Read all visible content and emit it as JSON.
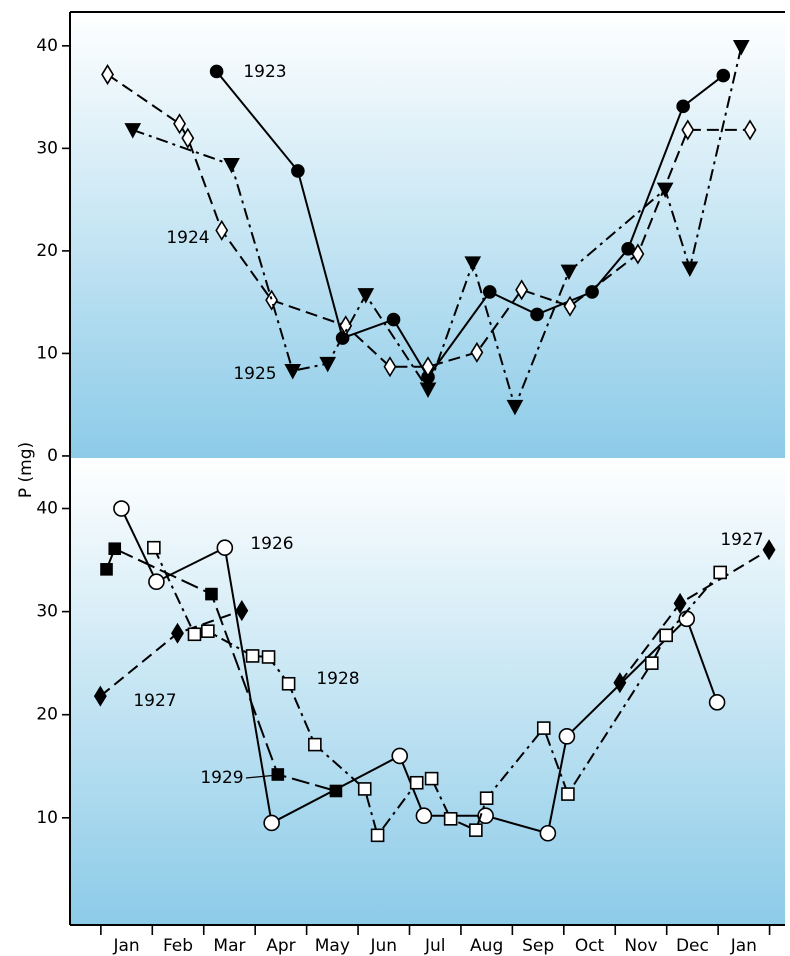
{
  "chart_data": [
    {
      "type": "line",
      "ylabel": "P (mg)",
      "xlim": [
        -0.1,
        13.8
      ],
      "ylim": [
        -0.2,
        43.3
      ],
      "yticks": [
        0,
        10,
        20,
        30,
        40
      ],
      "series": [
        {
          "name": "1923",
          "color": "#000000",
          "line_style": "solid",
          "marker": "filled-circle",
          "x": [
            2.75,
            4.33,
            5.2,
            6.19,
            6.86,
            8.06,
            8.98,
            10.05,
            10.75,
            11.82,
            12.6
          ],
          "values": [
            37.5,
            27.8,
            11.5,
            13.3,
            7.7,
            16.0,
            13.8,
            16.0,
            20.2,
            34.1,
            37.1
          ]
        },
        {
          "name": "1924",
          "color": "#000000",
          "line_style": "dashed",
          "marker": "open-diamond",
          "x": [
            0.63,
            2.03,
            2.19,
            2.85,
            3.82,
            5.26,
            6.12,
            6.86,
            7.81,
            8.68,
            9.62,
            10.94,
            11.91,
            13.12
          ],
          "values": [
            37.2,
            32.4,
            31.0,
            22.0,
            15.2,
            12.7,
            8.7,
            8.7,
            10.1,
            16.2,
            14.6,
            19.7,
            31.8,
            31.8
          ]
        },
        {
          "name": "1925",
          "color": "#000000",
          "line_style": "dashdot",
          "marker": "filled-triangle-down",
          "x": [
            1.12,
            3.04,
            4.23,
            4.91,
            5.65,
            6.86,
            7.73,
            8.55,
            9.6,
            11.47,
            11.95,
            12.95
          ],
          "values": [
            31.8,
            28.4,
            8.3,
            9.0,
            15.7,
            6.5,
            18.8,
            4.8,
            18.0,
            26.0,
            18.3,
            39.9
          ]
        }
      ]
    },
    {
      "type": "line",
      "xlim": [
        -0.1,
        13.8
      ],
      "ylim": [
        -0.4,
        44.9
      ],
      "yticks": [
        10,
        20,
        30,
        40
      ],
      "xticks": [
        {
          "value": 1,
          "label": "Jan"
        },
        {
          "value": 2,
          "label": "Feb"
        },
        {
          "value": 3,
          "label": "Mar"
        },
        {
          "value": 4,
          "label": "Apr"
        },
        {
          "value": 5,
          "label": "May"
        },
        {
          "value": 6,
          "label": "Jun"
        },
        {
          "value": 7,
          "label": "Jul"
        },
        {
          "value": 8,
          "label": "Aug"
        },
        {
          "value": 9,
          "label": "Sep"
        },
        {
          "value": 10,
          "label": "Oct"
        },
        {
          "value": 11,
          "label": "Nov"
        },
        {
          "value": 12,
          "label": "Dec"
        },
        {
          "value": 13,
          "label": "Jan"
        }
      ],
      "series": [
        {
          "name": "1926",
          "color": "#000000",
          "line_style": "solid",
          "marker": "open-circle",
          "x": [
            0.9,
            1.58,
            2.91,
            3.82,
            6.31,
            6.78,
            7.98,
            9.19,
            9.56,
            11.89,
            12.48
          ],
          "values": [
            40.0,
            32.9,
            36.2,
            9.5,
            16.0,
            10.2,
            10.2,
            8.5,
            17.9,
            29.3,
            21.2
          ]
        },
        {
          "name": "1929",
          "color": "#000000",
          "line_style": "longdash",
          "marker": "filled-square",
          "x": [
            0.61,
            0.77,
            2.65,
            3.94,
            5.07
          ],
          "values": [
            34.1,
            36.1,
            31.7,
            14.2,
            12.6
          ]
        },
        {
          "name": "1927",
          "color": "#000000",
          "line_style": "dashed",
          "marker": "filled-diamond",
          "x": [
            0.49,
            1.99,
            3.24,
            null,
            10.59,
            11.76,
            13.49
          ],
          "values": [
            21.8,
            27.9,
            30.1,
            null,
            23.1,
            30.8,
            36.0
          ]
        },
        {
          "name": "1928",
          "color": "#000000",
          "line_style": "dashdot",
          "marker": "open-square",
          "x": [
            1.53,
            2.32,
            2.58,
            3.45,
            3.76,
            4.15,
            4.66,
            5.63,
            5.88,
            6.64,
            6.93,
            7.3,
            7.79,
            8.0,
            9.11,
            9.58,
            11.21,
            11.49,
            12.54
          ],
          "values": [
            36.2,
            27.8,
            28.1,
            25.7,
            25.6,
            23.0,
            17.1,
            12.8,
            8.3,
            13.4,
            13.8,
            9.9,
            8.8,
            11.9,
            18.7,
            12.3,
            25.0,
            27.7,
            33.8
          ]
        }
      ]
    }
  ]
}
